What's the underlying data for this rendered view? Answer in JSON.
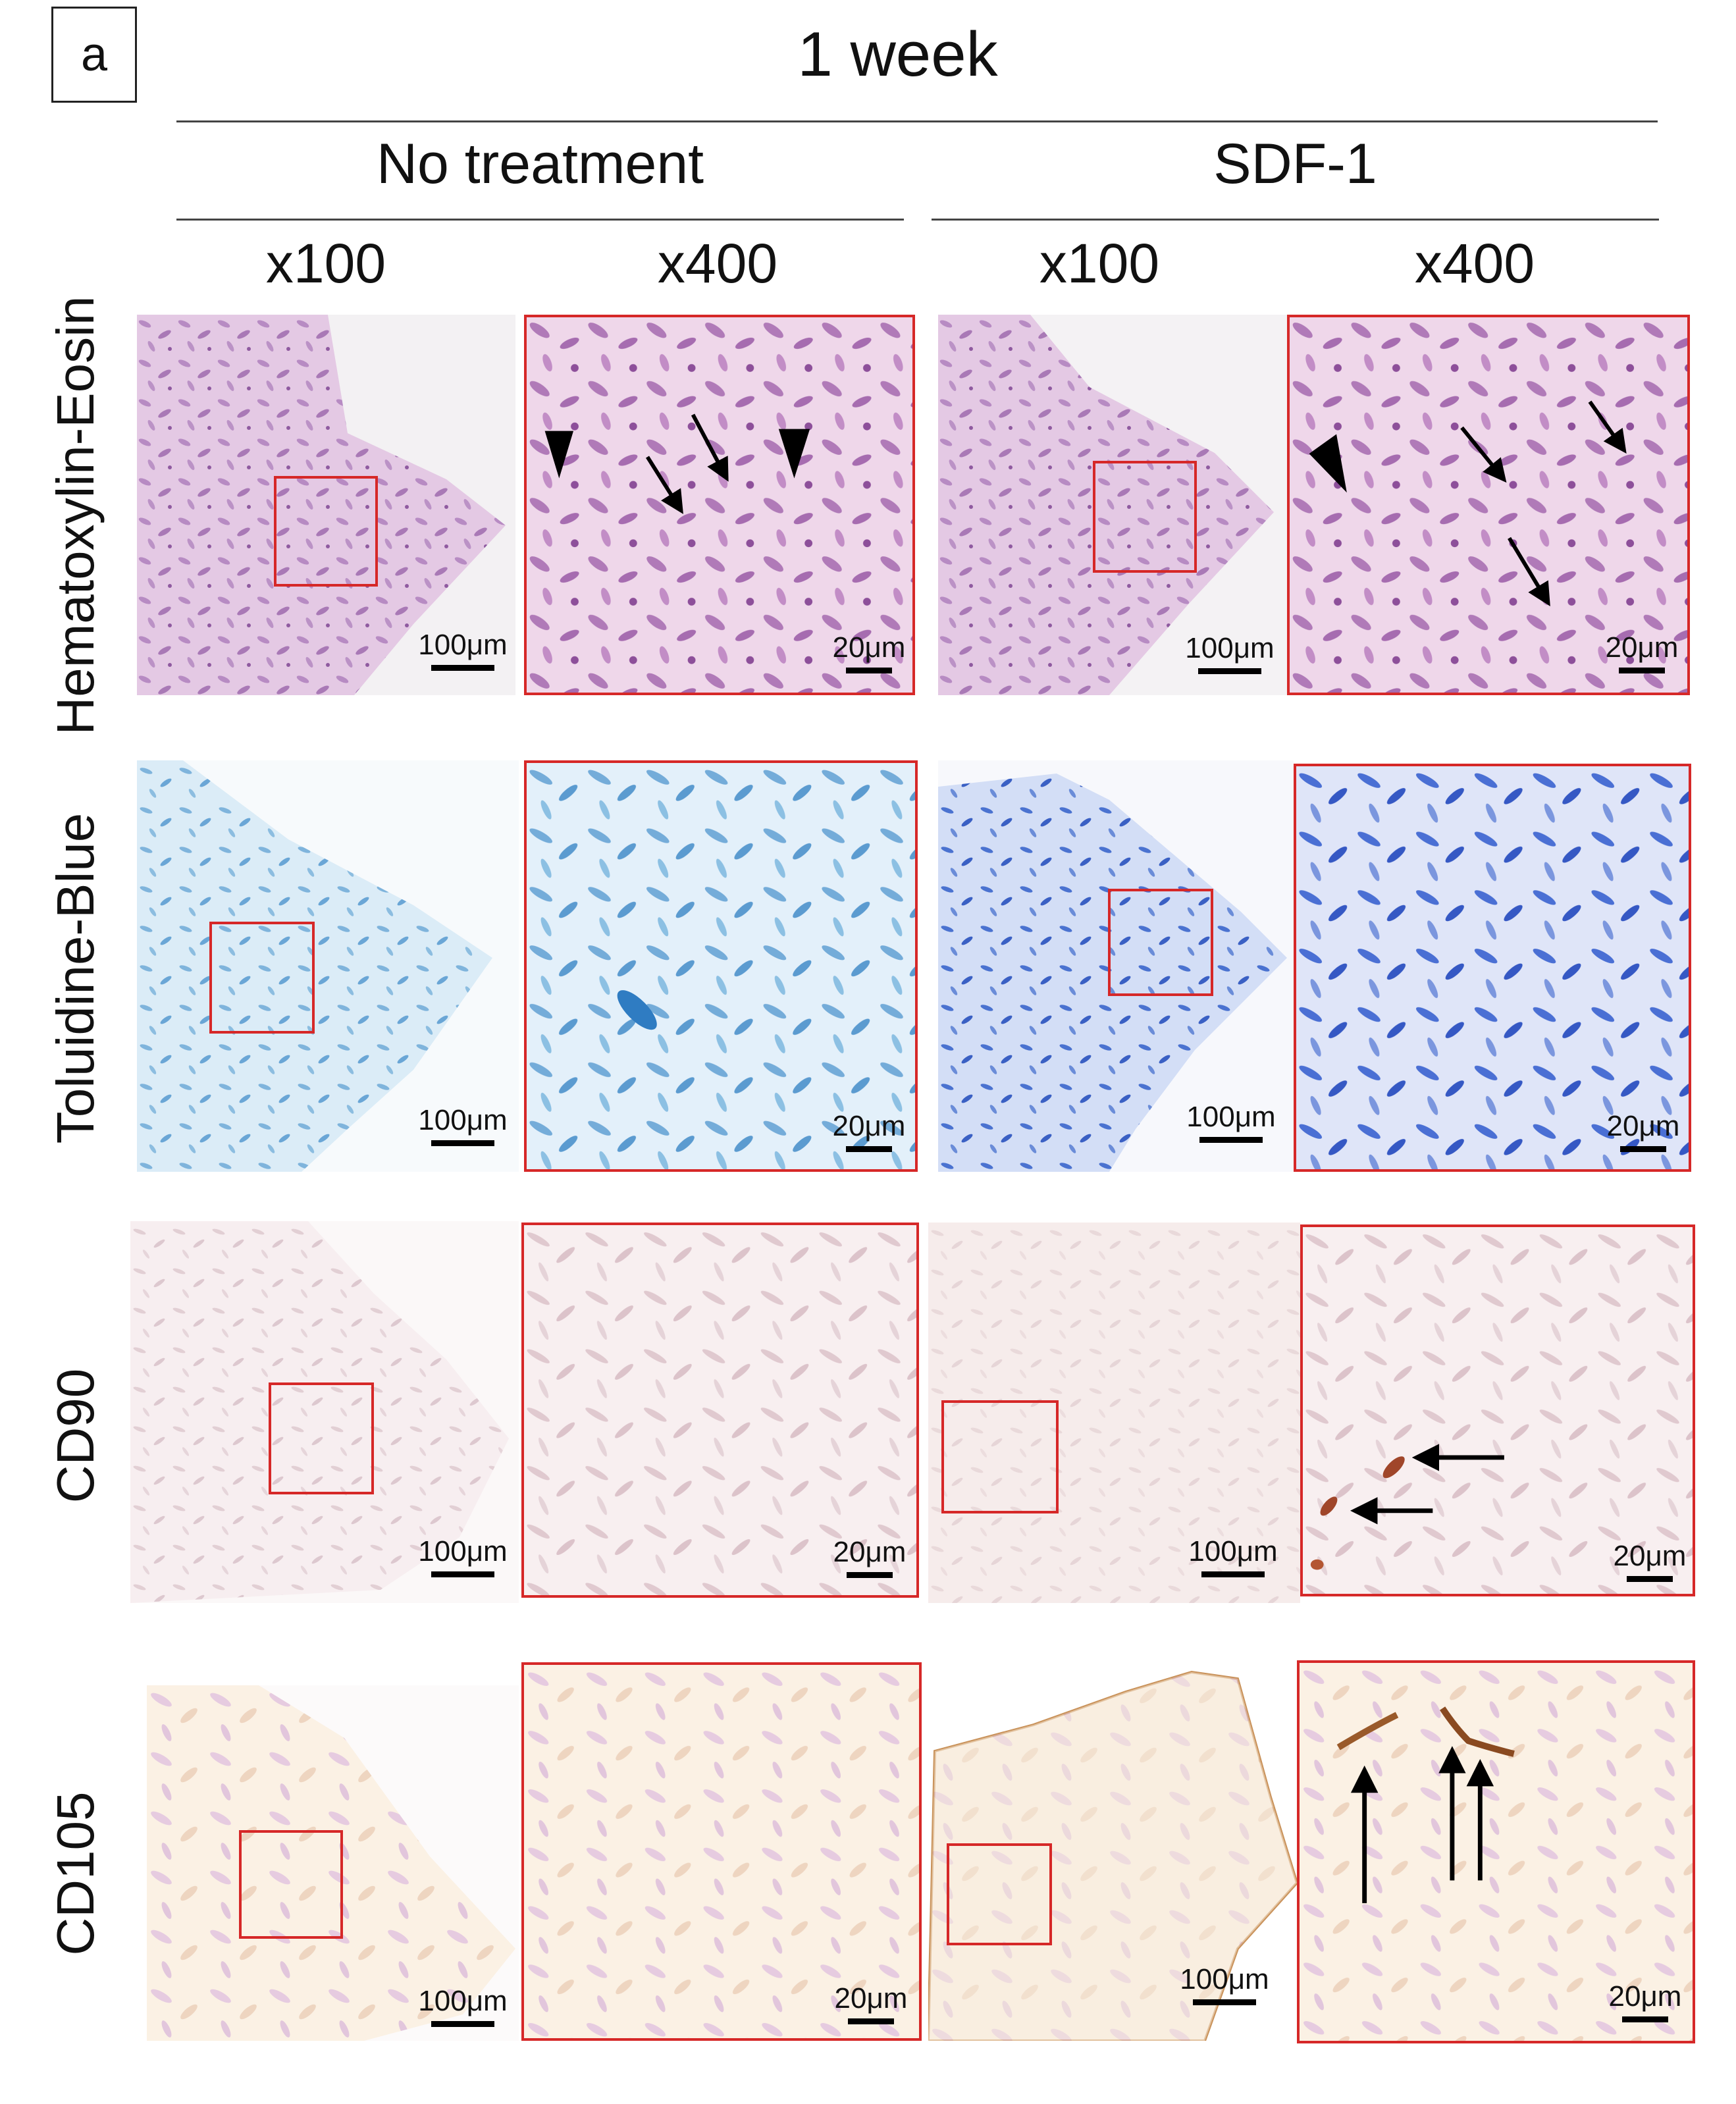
{
  "figure": {
    "panel_label": "a",
    "title": "1 week",
    "groups": [
      "No treatment",
      "SDF-1"
    ],
    "magnifications": [
      "x100",
      "x400",
      "x100",
      "x400"
    ],
    "rows": [
      "Hematoxylin-Eosin",
      "Toluidine-Blue",
      "CD90",
      "CD105"
    ],
    "scale_bars": {
      "low": "100μm",
      "high": "20μm"
    }
  },
  "colors": {
    "he_tissue": "#cfa6cf",
    "he_nuclei": "#9a5fa8",
    "tb_tissue": "#a9cde8",
    "tb_nuclei": "#3a6fd0",
    "ihc_tissue": "#f1e4e6",
    "ihc_positive": "#a0462a",
    "frame": "#d62828"
  },
  "markers": {
    "arrow": "arrow-icon",
    "arrowhead": "arrowhead-icon"
  }
}
